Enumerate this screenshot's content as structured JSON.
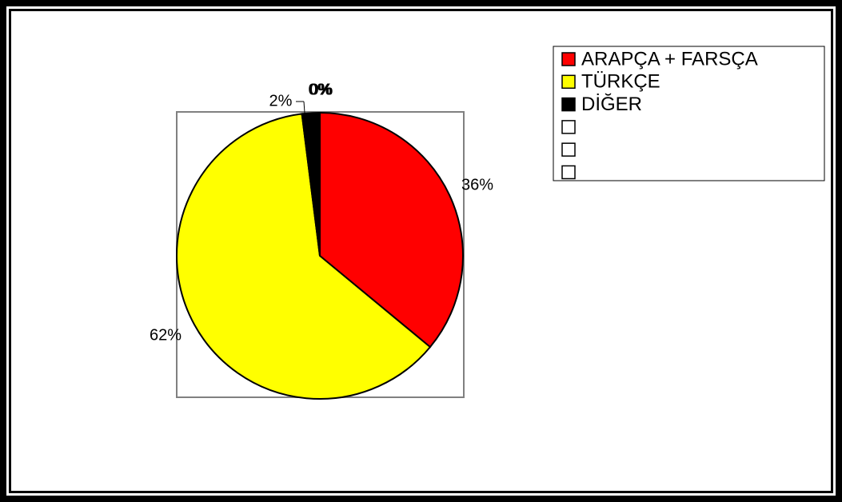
{
  "chart_data": {
    "type": "pie",
    "categories": [
      "ARAPÇA + FARSÇA",
      "TÜRKÇE",
      "DİĞER",
      null,
      null,
      null
    ],
    "values": [
      36,
      62,
      2,
      0,
      0,
      0
    ],
    "value_labels": [
      "36%",
      "62%",
      "2%",
      "0%",
      "0%",
      "0%"
    ],
    "colors": [
      "#ff0000",
      "#ffff00",
      "#000000",
      "#ffffff",
      "#ffffff",
      "#ffffff"
    ],
    "legend": "top-right"
  }
}
